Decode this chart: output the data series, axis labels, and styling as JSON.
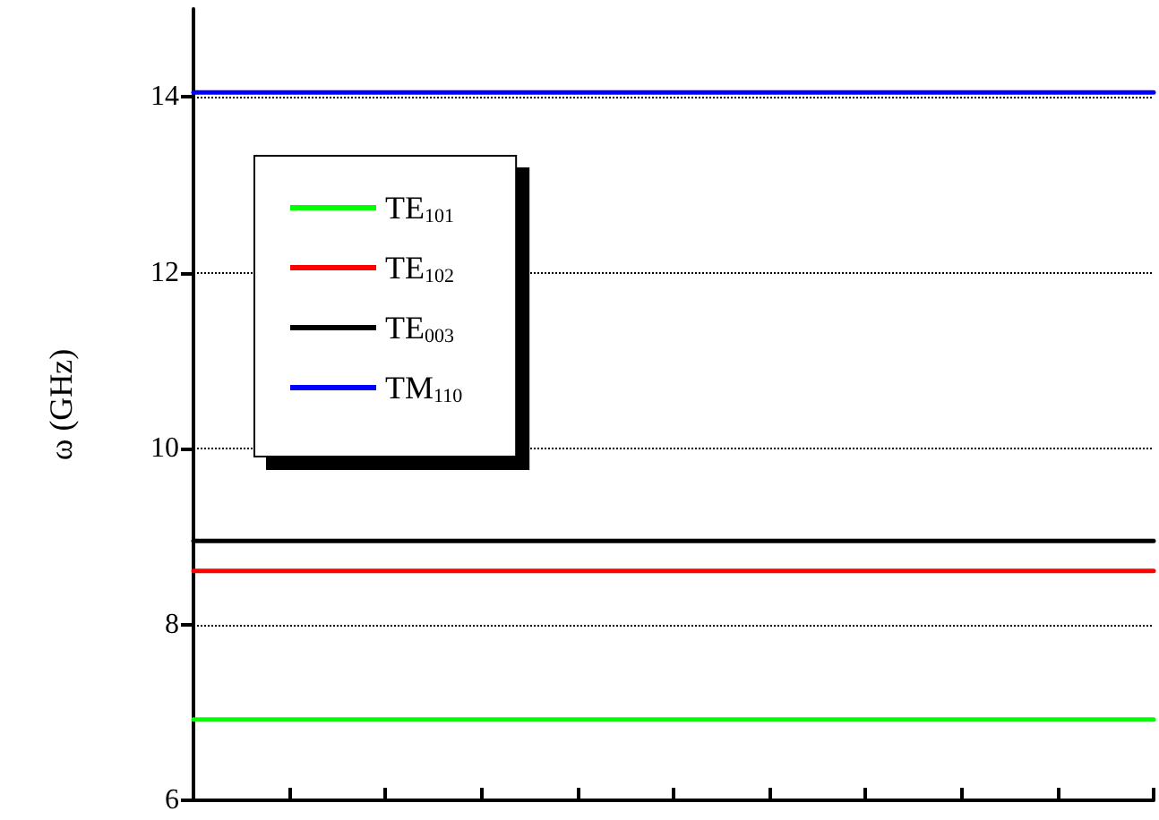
{
  "chart_data": {
    "type": "line",
    "ylabel": "ω (GHz)",
    "categories": [
      null,
      null,
      null,
      null,
      null,
      null,
      null,
      null,
      null,
      null,
      null
    ],
    "series": [
      {
        "name": "TE$_{101}$",
        "color": "#00ff00",
        "values": [
          6.92,
          6.92,
          6.92,
          6.92,
          6.92,
          6.92,
          6.92,
          6.92,
          6.92,
          6.92,
          6.92
        ]
      },
      {
        "name": "TE$_{102}$",
        "color": "#ff0000",
        "values": [
          8.61,
          8.61,
          8.61,
          8.61,
          8.61,
          8.61,
          8.61,
          8.61,
          8.61,
          8.61,
          8.61
        ]
      },
      {
        "name": "TE$_{003}$",
        "color": "#000000",
        "values": [
          8.95,
          8.95,
          8.95,
          8.95,
          8.95,
          8.95,
          8.95,
          8.95,
          8.95,
          8.95,
          8.95
        ]
      },
      {
        "name": "TM$_{110}$",
        "color": "#0000ff",
        "values": [
          14.05,
          14.05,
          14.05,
          14.05,
          14.05,
          14.05,
          14.05,
          14.05,
          14.05,
          14.05,
          14.05
        ]
      }
    ],
    "ylim": [
      6,
      15
    ],
    "yticks": [
      6,
      8,
      10,
      12,
      14
    ],
    "grid": "y",
    "legend": "top left",
    "marker": "none",
    "line_style": "solid"
  }
}
